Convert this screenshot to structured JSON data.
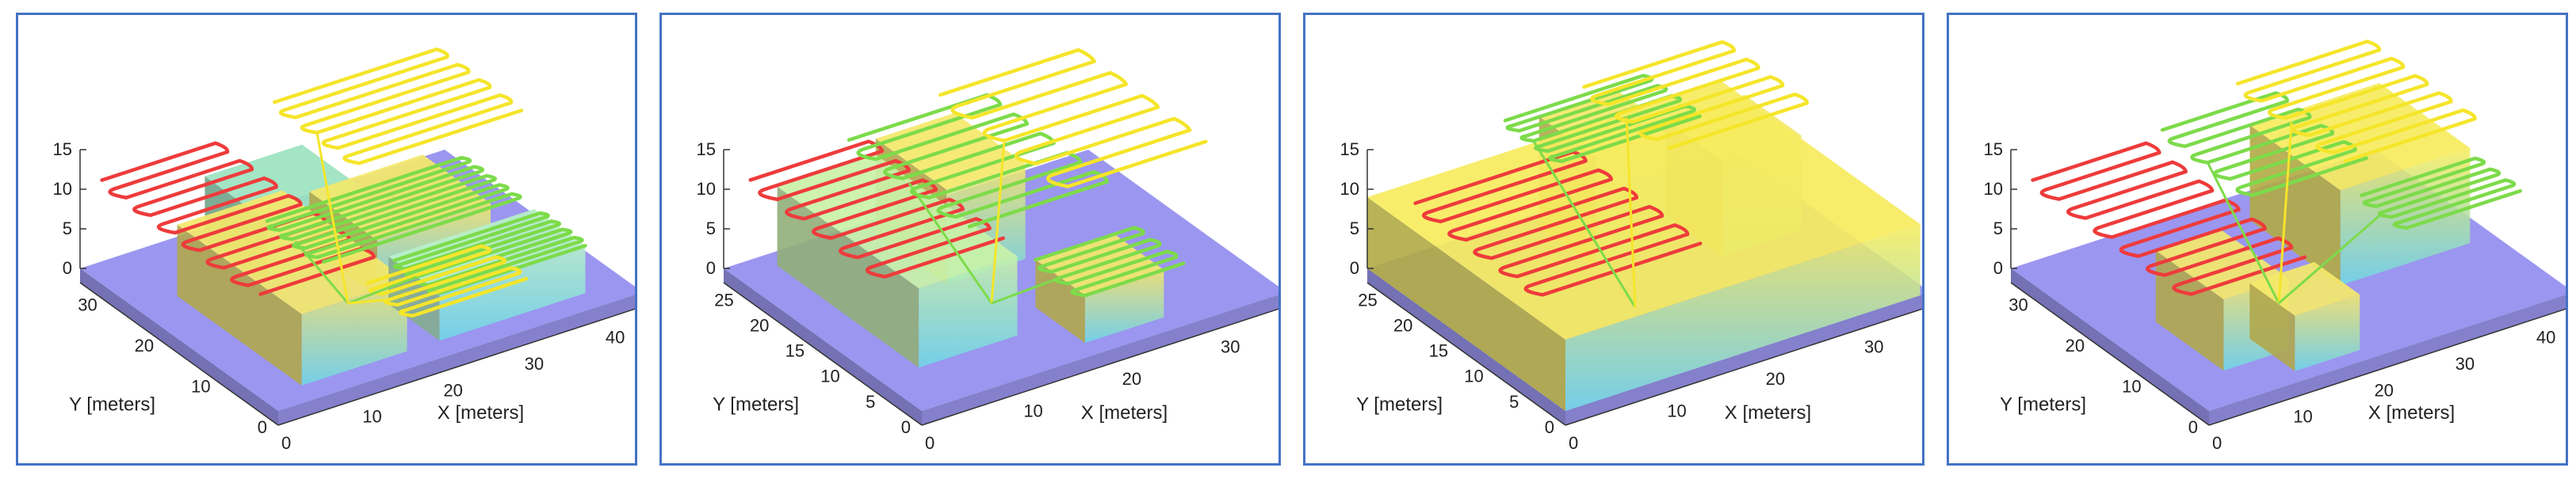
{
  "chart_data": [
    {
      "type": "3d-surface-with-paths",
      "z_ticks": [
        "0",
        "5",
        "10",
        "15"
      ],
      "y_ticks": [
        "0",
        "10",
        "20",
        "30"
      ],
      "x_ticks": [
        "0",
        "10",
        "20",
        "30",
        "40"
      ],
      "xlabel": "X [meters]",
      "ylabel": "Y [meters]",
      "xlim": [
        0,
        45
      ],
      "ylim": [
        0,
        35
      ],
      "zlim": [
        0,
        15
      ],
      "path_colors": [
        "#ee3b3b",
        "#7ddb4a",
        "#f5e52a"
      ],
      "ground_color": "#9b96f0",
      "blocks": [
        {
          "x": [
            5,
            18
          ],
          "y": [
            3,
            25
          ],
          "h": 9,
          "color": "#f4e86a"
        },
        {
          "x": [
            22,
            36
          ],
          "y": [
            14,
            26
          ],
          "h": 7,
          "color": "#f4e86a"
        },
        {
          "x": [
            22,
            40
          ],
          "y": [
            3,
            12
          ],
          "h": 6,
          "color": "#b7f0c8"
        },
        {
          "x": [
            14,
            26
          ],
          "y": [
            22,
            33
          ],
          "h": 8,
          "color": "#9be3c0"
        }
      ],
      "paths": [
        {
          "color": "#ee3b3b",
          "x": [
            2,
            16
          ],
          "y": [
            6,
            34
          ],
          "z": 11,
          "loops": 13
        },
        {
          "color": "#7ddb4a",
          "x": [
            14,
            38
          ],
          "y": [
            12,
            22
          ],
          "z": 8,
          "loops": 9
        },
        {
          "color": "#7ddb4a",
          "x": [
            22,
            40
          ],
          "y": [
            3,
            11
          ],
          "z": 6,
          "loops": 8
        },
        {
          "color": "#f5e52a",
          "x": [
            24,
            44
          ],
          "y": [
            20,
            35
          ],
          "z": 13,
          "loops": 8
        },
        {
          "color": "#f5e52a",
          "x": [
            18,
            32
          ],
          "y": [
            2,
            10
          ],
          "z": 5,
          "loops": 6
        }
      ]
    },
    {
      "type": "3d-surface-with-paths",
      "z_ticks": [
        "0",
        "5",
        "10",
        "15"
      ],
      "y_ticks": [
        "0",
        "5",
        "10",
        "15",
        "20",
        "25"
      ],
      "x_ticks": [
        "0",
        "10",
        "20",
        "30"
      ],
      "xlabel": "X [meters]",
      "ylabel": "Y [meters]",
      "xlim": [
        0,
        37
      ],
      "ylim": [
        0,
        28
      ],
      "zlim": [
        0,
        15
      ],
      "path_colors": [
        "#ee3b3b",
        "#7ddb4a",
        "#f5e52a"
      ],
      "ground_color": "#9b96f0",
      "blocks": [
        {
          "x": [
            4,
            14
          ],
          "y": [
            6,
            26
          ],
          "h": 10,
          "color": "#c9f2a8"
        },
        {
          "x": [
            14,
            22
          ],
          "y": [
            16,
            26
          ],
          "h": 12,
          "color": "#f4e86a"
        },
        {
          "x": [
            18,
            26
          ],
          "y": [
            2,
            9
          ],
          "h": 6,
          "color": "#f4e86a"
        }
      ],
      "paths": [
        {
          "color": "#ee3b3b",
          "x": [
            2,
            14
          ],
          "y": [
            8,
            27
          ],
          "z": 11,
          "loops": 10
        },
        {
          "color": "#7ddb4a",
          "x": [
            12,
            26
          ],
          "y": [
            10,
            27
          ],
          "z": 12,
          "loops": 9
        },
        {
          "color": "#f5e52a",
          "x": [
            22,
            36
          ],
          "y": [
            10,
            28
          ],
          "z": 13,
          "loops": 8
        },
        {
          "color": "#7ddb4a",
          "x": [
            18,
            28
          ],
          "y": [
            2,
            9
          ],
          "z": 6,
          "loops": 6
        }
      ]
    },
    {
      "type": "3d-surface-with-paths",
      "z_ticks": [
        "0",
        "5",
        "10",
        "15"
      ],
      "y_ticks": [
        "0",
        "5",
        "10",
        "15",
        "20",
        "25"
      ],
      "x_ticks": [
        "0",
        "10",
        "20",
        "30"
      ],
      "xlabel": "X [meters]",
      "ylabel": "Y [meters]",
      "xlim": [
        0,
        37
      ],
      "ylim": [
        0,
        28
      ],
      "zlim": [
        0,
        15
      ],
      "path_colors": [
        "#ee3b3b",
        "#7ddb4a",
        "#f5e52a"
      ],
      "ground_color": "#9b96f0",
      "blocks": [
        {
          "x": [
            0,
            36
          ],
          "y": [
            0,
            28
          ],
          "h": 9,
          "color": "#f6ec5e"
        },
        {
          "x": [
            16,
            24
          ],
          "y": [
            18,
            26
          ],
          "h": 14,
          "color": "#f4e86a"
        },
        {
          "x": [
            26,
            34
          ],
          "y": [
            14,
            22
          ],
          "h": 12,
          "color": "#f4e86a"
        }
      ],
      "paths": [
        {
          "color": "#ee3b3b",
          "x": [
            2,
            18
          ],
          "y": [
            6,
            24
          ],
          "z": 10,
          "loops": 10
        },
        {
          "color": "#7ddb4a",
          "x": [
            14,
            28
          ],
          "y": [
            20,
            28
          ],
          "z": 13,
          "loops": 8
        },
        {
          "color": "#f5e52a",
          "x": [
            22,
            36
          ],
          "y": [
            16,
            28
          ],
          "z": 14,
          "loops": 7
        }
      ]
    },
    {
      "type": "3d-surface-with-paths",
      "z_ticks": [
        "0",
        "5",
        "10",
        "15"
      ],
      "y_ticks": [
        "0",
        "10",
        "20",
        "30"
      ],
      "x_ticks": [
        "0",
        "10",
        "20",
        "30",
        "40"
      ],
      "xlabel": "X [meters]",
      "ylabel": "Y [meters]",
      "xlim": [
        0,
        45
      ],
      "ylim": [
        0,
        35
      ],
      "zlim": [
        0,
        15
      ],
      "path_colors": [
        "#ee3b3b",
        "#7ddb4a",
        "#f5e52a"
      ],
      "ground_color": "#9b96f0",
      "blocks": [
        {
          "x": [
            6,
            14
          ],
          "y": [
            6,
            18
          ],
          "h": 9,
          "color": "#f4e86a"
        },
        {
          "x": [
            12,
            20
          ],
          "y": [
            2,
            10
          ],
          "h": 7,
          "color": "#f4e86a"
        },
        {
          "x": [
            26,
            42
          ],
          "y": [
            14,
            30
          ],
          "h": 12,
          "color": "#f6ec5e"
        }
      ],
      "paths": [
        {
          "color": "#ee3b3b",
          "x": [
            2,
            16
          ],
          "y": [
            6,
            34
          ],
          "z": 11,
          "loops": 12
        },
        {
          "color": "#7ddb4a",
          "x": [
            18,
            32
          ],
          "y": [
            18,
            34
          ],
          "z": 12,
          "loops": 8
        },
        {
          "color": "#f5e52a",
          "x": [
            28,
            44
          ],
          "y": [
            16,
            35
          ],
          "z": 14,
          "loops": 9
        },
        {
          "color": "#7ddb4a",
          "x": [
            30,
            44
          ],
          "y": [
            8,
            16
          ],
          "z": 9,
          "loops": 6
        }
      ]
    }
  ]
}
